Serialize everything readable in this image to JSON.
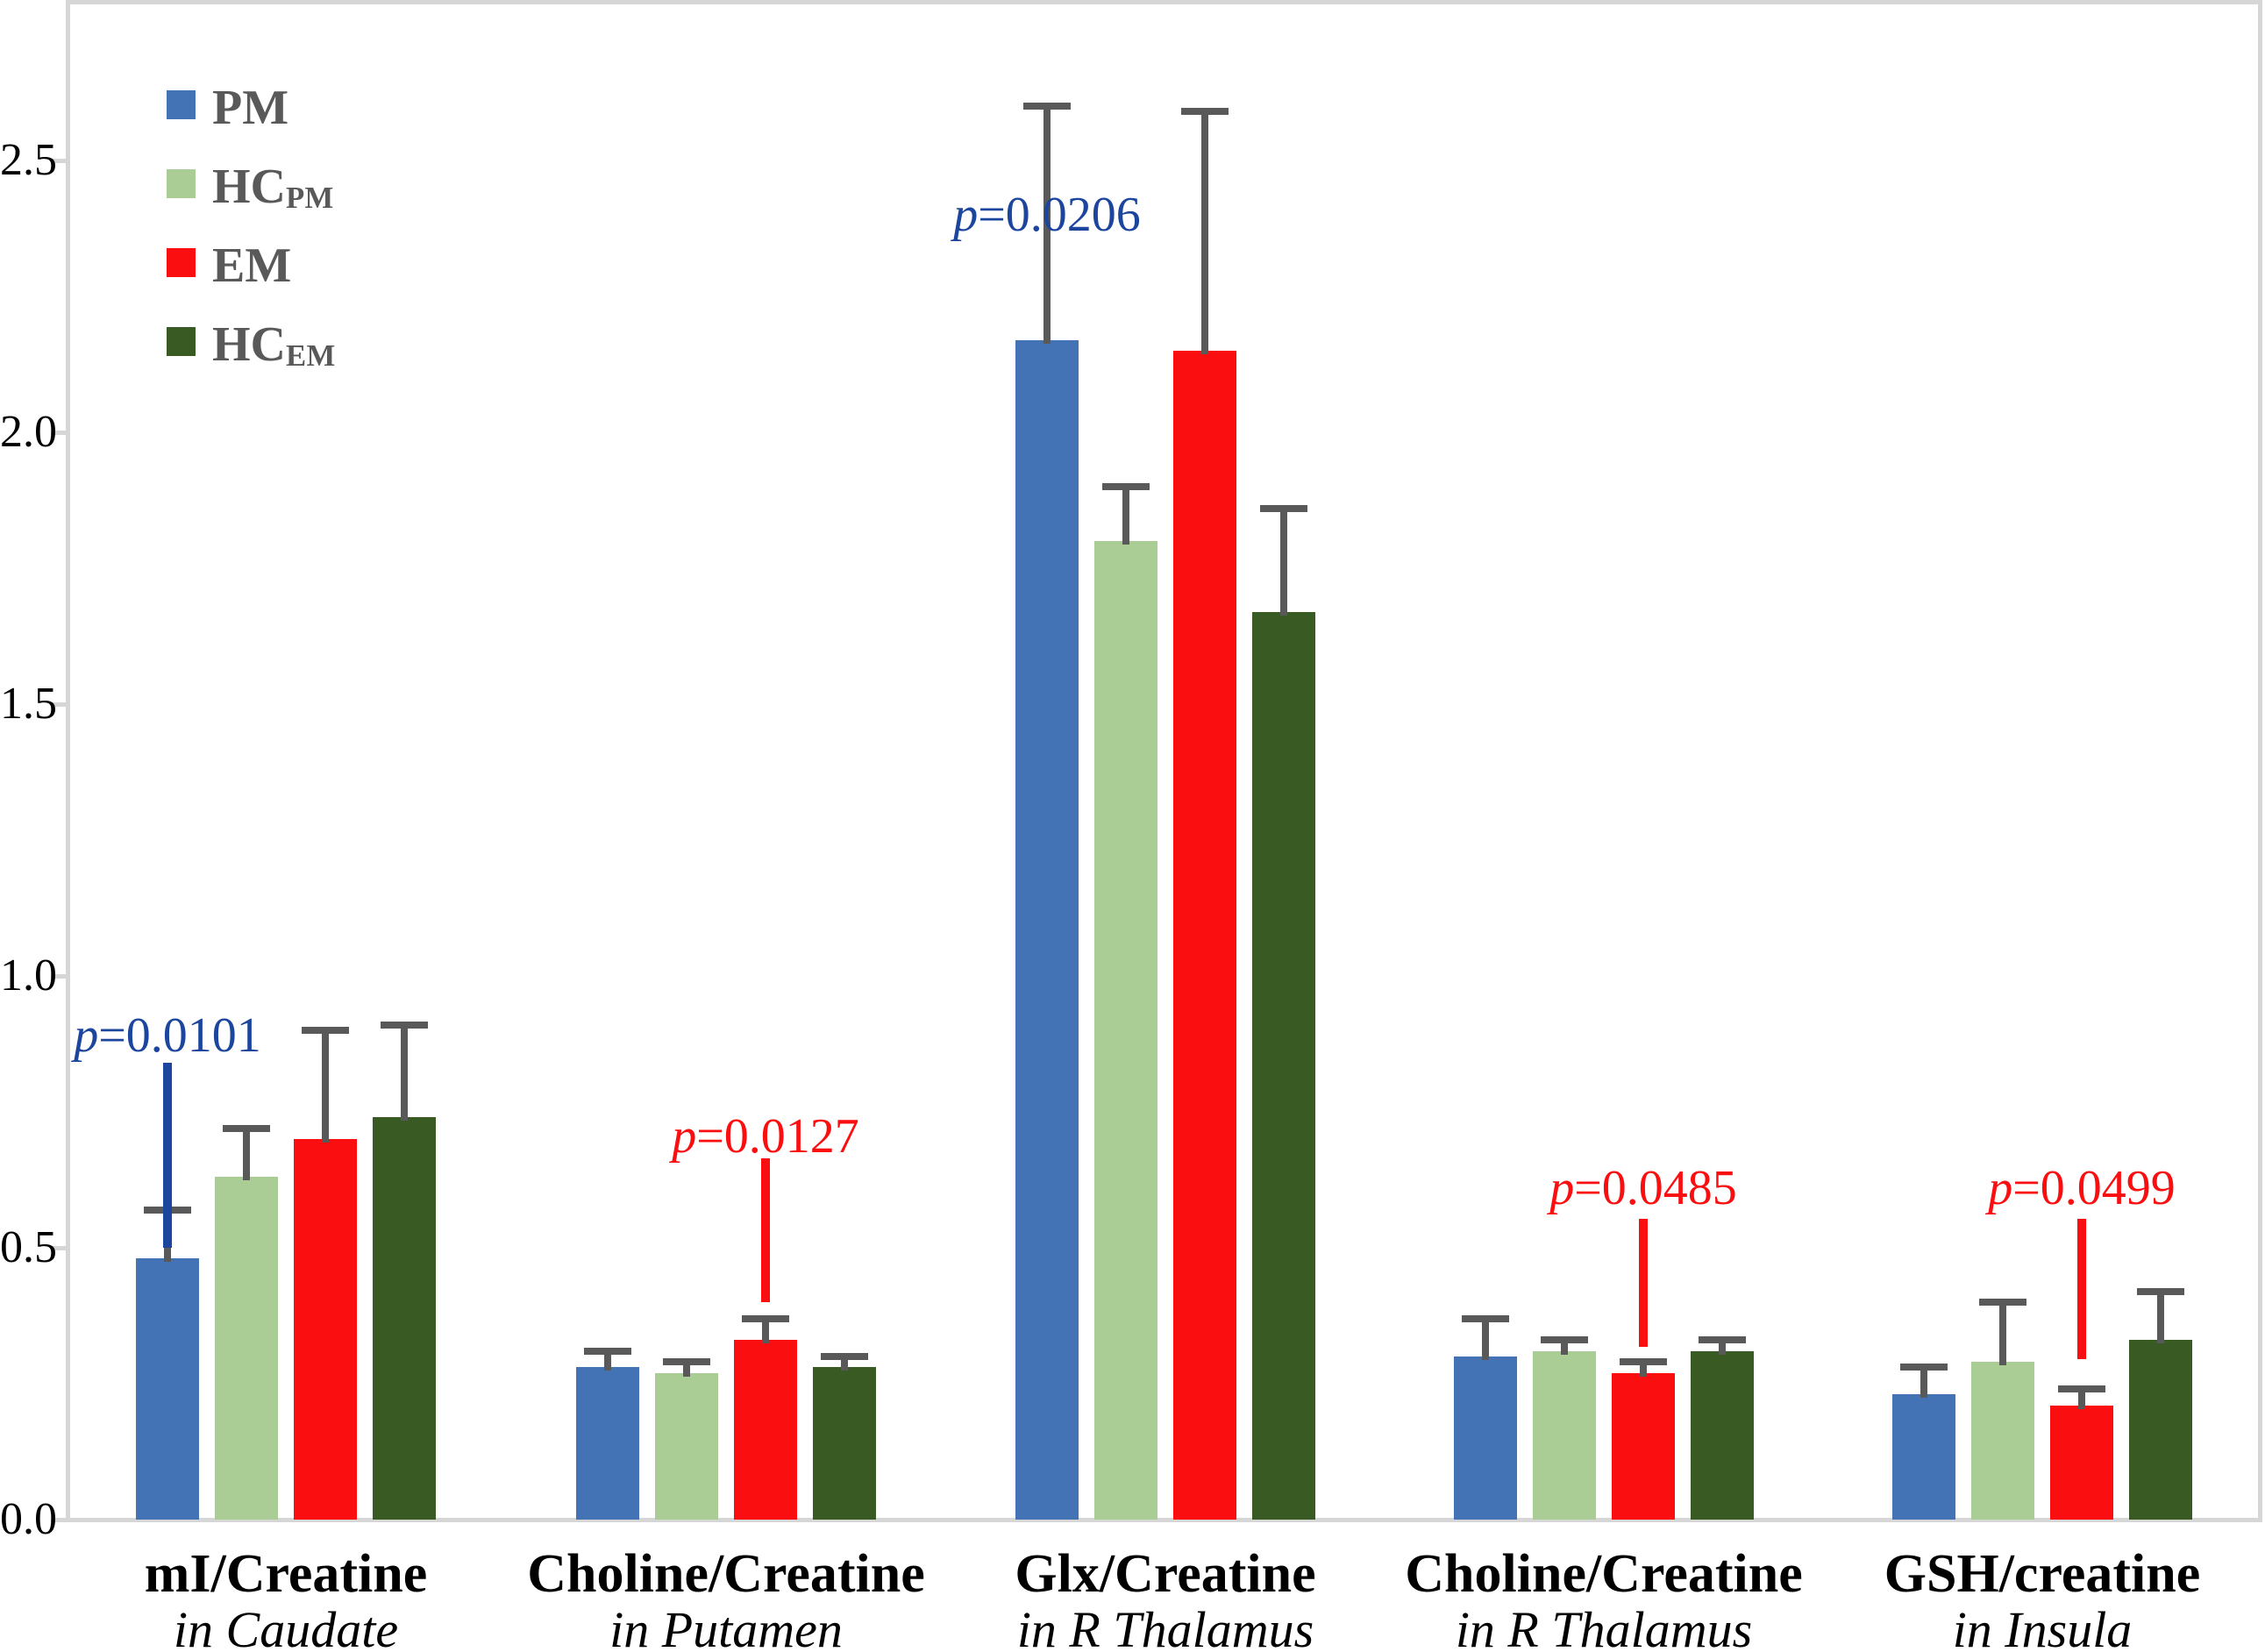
{
  "chart_data": {
    "type": "bar",
    "title": "",
    "xlabel": "",
    "ylabel": "",
    "ylim": [
      0,
      2.8
    ],
    "grid": false,
    "legend_position": "top-left-inside",
    "ytick_values": [
      0.0,
      0.5,
      1.0,
      1.5,
      2.0,
      2.5
    ],
    "ytick_labels": [
      "0.0",
      "0.5",
      "1.0",
      "1.5",
      "2.0",
      "2.5"
    ],
    "categories": [
      {
        "line1": "mI/Creatine",
        "line2": "in Caudate"
      },
      {
        "line1": "Choline/Creatine",
        "line2": "in Putamen"
      },
      {
        "line1": "Glx/Creatine",
        "line2": "in R Thalamus"
      },
      {
        "line1": "Choline/Creatine",
        "line2": "in R Thalamus"
      },
      {
        "line1": "GSH/creatine",
        "line2": "in Insula"
      }
    ],
    "series": [
      {
        "name": "PM",
        "subscript": "",
        "color": "#4473b5",
        "values": [
          0.48,
          0.28,
          2.17,
          0.3,
          0.23
        ],
        "errors_plus": [
          0.09,
          0.03,
          0.43,
          0.07,
          0.05
        ]
      },
      {
        "name": "HC",
        "subscript": "PM",
        "color": "#a9cd94",
        "values": [
          0.63,
          0.27,
          1.8,
          0.31,
          0.29
        ],
        "errors_plus": [
          0.09,
          0.02,
          0.1,
          0.02,
          0.11
        ]
      },
      {
        "name": "EM",
        "subscript": "",
        "color": "#fa0e10",
        "values": [
          0.7,
          0.33,
          2.15,
          0.27,
          0.21
        ],
        "errors_plus": [
          0.2,
          0.04,
          0.44,
          0.02,
          0.03
        ]
      },
      {
        "name": "HC",
        "subscript": "EM",
        "color": "#3a5a23",
        "values": [
          0.74,
          0.28,
          1.67,
          0.31,
          0.33
        ],
        "errors_plus": [
          0.17,
          0.02,
          0.19,
          0.02,
          0.09
        ]
      }
    ],
    "error_bar_color": "#595959",
    "axis_color": "#d6d6d6",
    "tick_label_color": "#000000",
    "legend_text_color": "#595959",
    "annotation_colors": {
      "blue": "#1c459e",
      "red": "#fa0e10"
    },
    "annotations": [
      {
        "text": "p=0.0101",
        "color": "blue",
        "group": 0,
        "series": 0,
        "text_y": 0.89,
        "line_y": [
          0.5,
          0.84
        ]
      },
      {
        "text": "p=0.0127",
        "color": "red",
        "group": 1,
        "series": 2,
        "text_y": 0.705,
        "line_y": [
          0.4,
          0.665
        ]
      },
      {
        "text": "p=0.0206",
        "color": "blue",
        "group": 2,
        "series": 0,
        "text_y": 2.4,
        "line_y": null
      },
      {
        "text": "p=0.0485",
        "color": "red",
        "group": 3,
        "series": 2,
        "text_y": 0.61,
        "line_y": [
          0.318,
          0.553
        ]
      },
      {
        "text": "p=0.0499",
        "color": "red",
        "group": 4,
        "series": 2,
        "text_y": 0.61,
        "line_y": [
          0.295,
          0.553
        ]
      }
    ]
  }
}
